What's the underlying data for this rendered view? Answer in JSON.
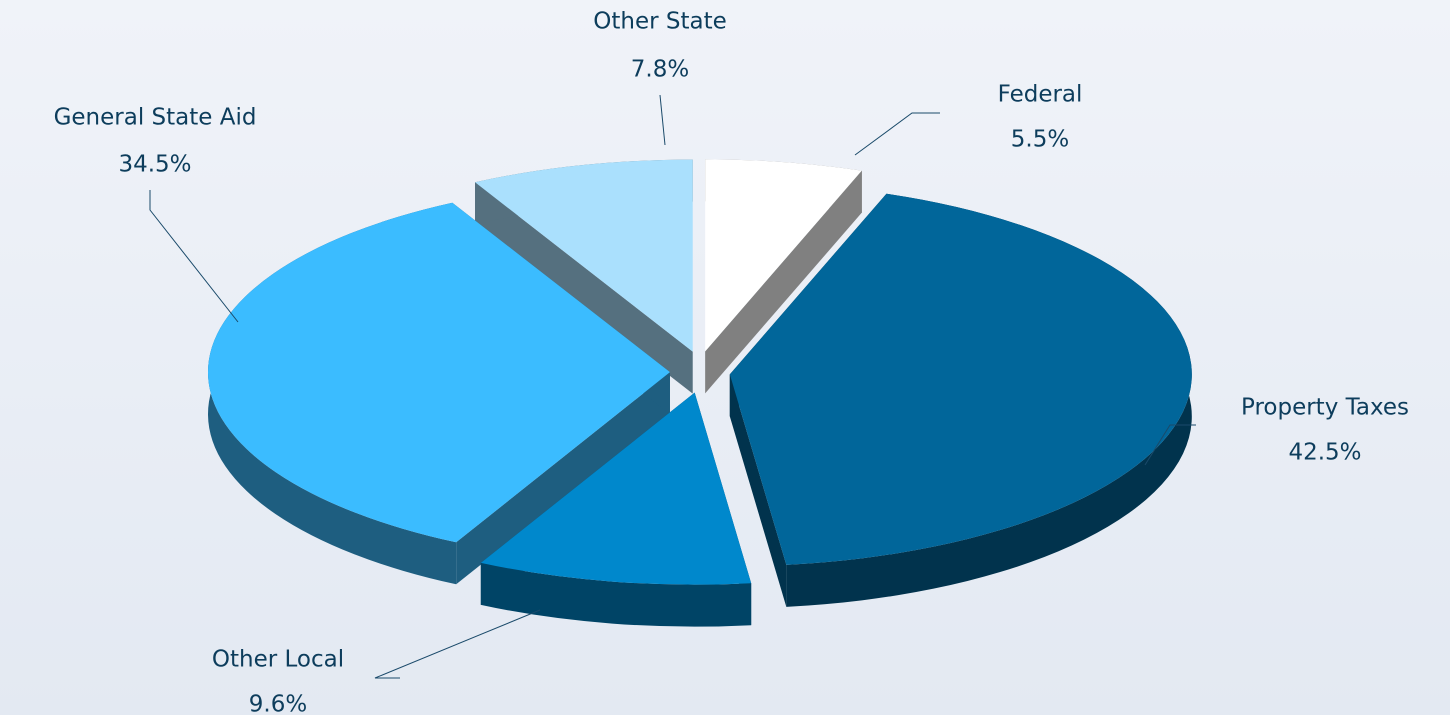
{
  "chart_data": {
    "type": "pie",
    "categories": [
      "Federal",
      "Property Taxes",
      "Other Local",
      "General State Aid",
      "Other State"
    ],
    "values": [
      5.5,
      42.5,
      9.6,
      34.5,
      7.8
    ],
    "value_labels": [
      "5.5%",
      "42.5%",
      "9.6%",
      "34.5%",
      "7.8%"
    ],
    "colors": [
      "#ffffff",
      "#01669a",
      "#0088cc",
      "#3bbcff",
      "#aae0fd"
    ]
  }
}
